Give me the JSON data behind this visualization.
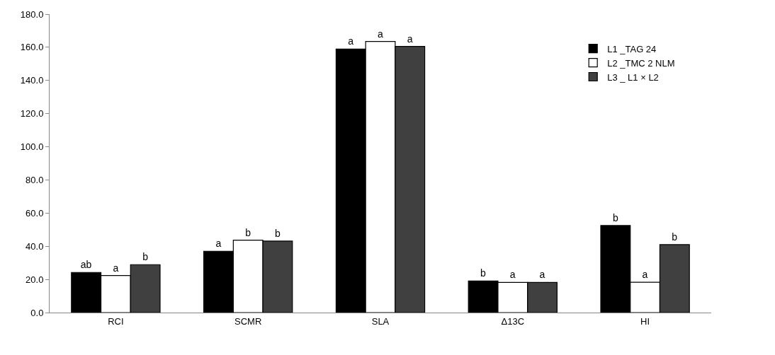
{
  "chart_data": {
    "type": "bar",
    "categories": [
      "RCI",
      "SCMR",
      "SLA",
      "Δ13C",
      "HI"
    ],
    "series": [
      {
        "name": "L1 _TAG 24",
        "color": "#000000",
        "values": [
          24.2,
          37.0,
          159.0,
          19.0,
          52.5
        ],
        "value_labels": [
          "ab",
          "a",
          "a",
          "b",
          "b"
        ]
      },
      {
        "name": "L2 _TMC 2 NLM",
        "color": "#ffffff",
        "values": [
          22.3,
          43.7,
          163.5,
          18.2,
          18.3
        ],
        "value_labels": [
          "a",
          "b",
          "a",
          "a",
          "a"
        ]
      },
      {
        "name": "L3 _ L1 × L2",
        "color": "#404040",
        "values": [
          28.9,
          43.1,
          160.5,
          18.2,
          41.0
        ],
        "value_labels": [
          "b",
          "b",
          "a",
          "a",
          "b"
        ]
      }
    ],
    "ylim": [
      0,
      180
    ],
    "yticks": [
      {
        "value": 0,
        "label": "0.0"
      },
      {
        "value": 20,
        "label": "20.0"
      },
      {
        "value": 40,
        "label": "40.0"
      },
      {
        "value": 60,
        "label": "60.0"
      },
      {
        "value": 80,
        "label": "80.0"
      },
      {
        "value": 100,
        "label": "100.0"
      },
      {
        "value": 120,
        "label": "120.0"
      },
      {
        "value": 140,
        "label": "140.0"
      },
      {
        "value": 160,
        "label": "160.0"
      },
      {
        "value": 180,
        "label": "180.0"
      }
    ],
    "grid": false,
    "legend": "top right"
  }
}
